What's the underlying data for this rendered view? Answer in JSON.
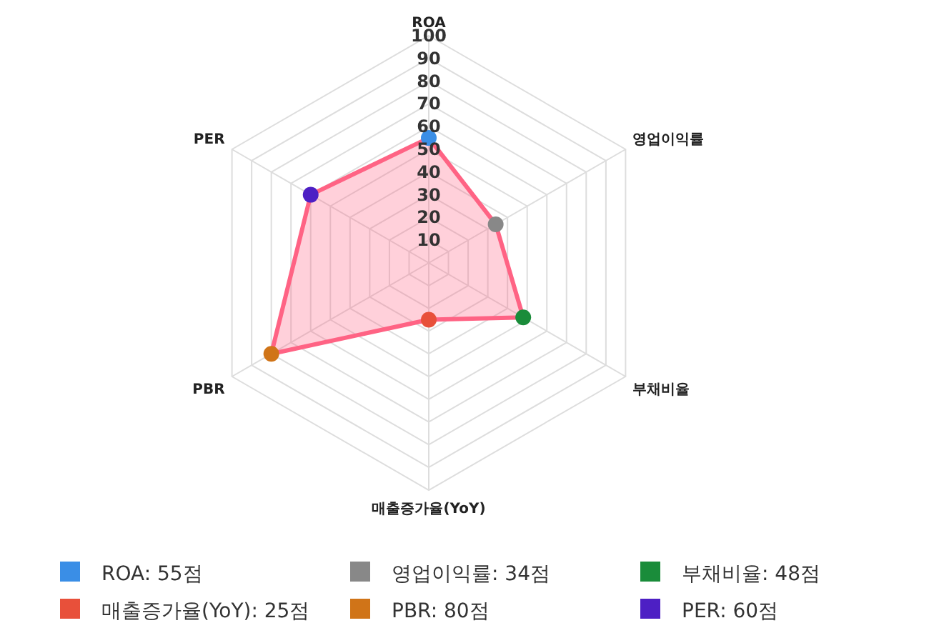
{
  "chart_data": {
    "type": "radar",
    "categories": [
      "ROA",
      "영업이익률",
      "부채비율",
      "매출증가율(YoY)",
      "PBR",
      "PER"
    ],
    "series": [
      {
        "color": "#ff6384",
        "values": [
          55,
          34,
          48,
          25,
          80,
          60
        ]
      }
    ],
    "colors": [
      "#3a8ee6",
      "#888888",
      "#1a8c3a",
      "#e8503a",
      "#d07418",
      "#4d1fc4"
    ],
    "value_labels": [
      "ROA: 55점",
      "영업이익률: 34점",
      "부채비율: 48점",
      "매출증가율(YoY): 25점",
      "PBR: 80점",
      "PER: 60점"
    ],
    "ylim": [
      0,
      100
    ],
    "yticks": [
      10,
      20,
      30,
      40,
      50,
      60,
      70,
      80,
      90,
      100
    ],
    "grid": true,
    "marker": "circle"
  }
}
